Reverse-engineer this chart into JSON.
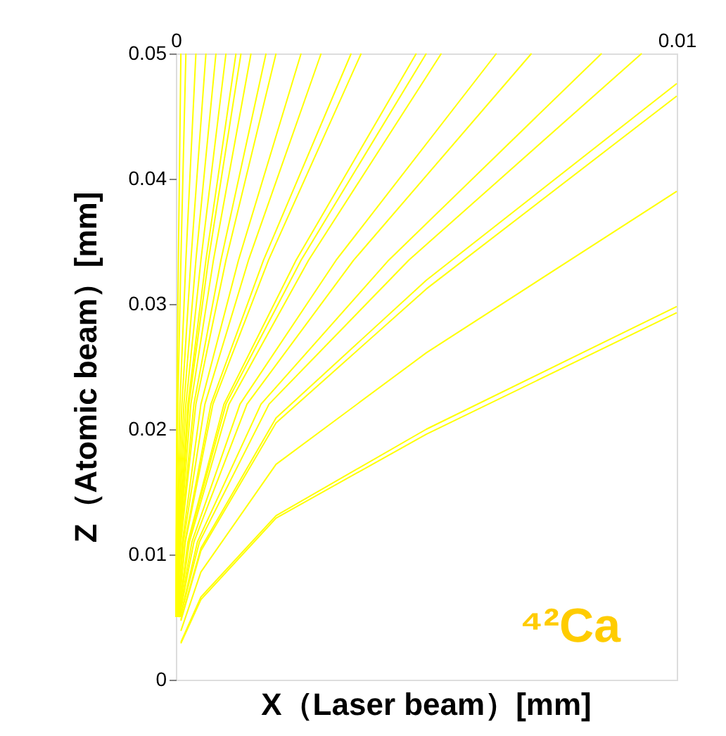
{
  "chart_data": {
    "type": "line",
    "xlabel": "X（Laser beam）[mm]",
    "ylabel": "Z（Atomic beam）[mm]",
    "xlim": [
      0,
      0.01
    ],
    "ylim": [
      0,
      0.05
    ],
    "xticks": [
      0,
      0.01
    ],
    "yticks": [
      0,
      0.01,
      0.02,
      0.03,
      0.04,
      0.05
    ],
    "grid": false,
    "legend": false,
    "marker": "none",
    "line_style": "solid",
    "annotations": [
      "⁴²Ca"
    ],
    "series": [
      {
        "color": "#ffff00",
        "x": [
          0.0001,
          0.0005,
          0.002,
          0.005,
          0.01
        ],
        "values": [
          0.0029,
          0.0064,
          0.0129,
          0.0196,
          0.0293
        ]
      },
      {
        "color": "#ffff00",
        "x": [
          0.0001,
          0.0005,
          0.002,
          0.005,
          0.01
        ],
        "values": [
          0.003,
          0.0066,
          0.0131,
          0.02,
          0.0298
        ]
      },
      {
        "color": "#ffff00",
        "x": [
          0.0001,
          0.0005,
          0.002,
          0.005,
          0.01
        ],
        "values": [
          0.0039,
          0.0086,
          0.0172,
          0.0261,
          0.039
        ]
      },
      {
        "color": "#ffff00",
        "x": [
          0.0001,
          0.0005,
          0.002,
          0.005,
          0.01
        ],
        "values": [
          0.0047,
          0.0103,
          0.0205,
          0.0312,
          0.0466
        ]
      },
      {
        "color": "#ffff00",
        "x": [
          0.0001,
          0.0005,
          0.002,
          0.005,
          0.01
        ],
        "values": [
          0.0048,
          0.0105,
          0.0209,
          0.0319,
          0.0476
        ]
      },
      {
        "color": "#ffff00",
        "x": [
          9e-05,
          0.00047,
          0.00186,
          0.00465,
          0.0093
        ],
        "values": [
          0.005,
          0.011,
          0.022,
          0.0335,
          0.05
        ]
      },
      {
        "color": "#ffff00",
        "x": [
          9e-05,
          0.00043,
          0.0017,
          0.00425,
          0.0085
        ],
        "values": [
          0.005,
          0.011,
          0.022,
          0.0335,
          0.05
        ]
      },
      {
        "color": "#ffff00",
        "x": [
          7e-05,
          0.00036,
          0.00142,
          0.00355,
          0.0071
        ],
        "values": [
          0.005,
          0.011,
          0.022,
          0.0335,
          0.05
        ]
      },
      {
        "color": "#ffff00",
        "x": [
          6e-05,
          0.00032,
          0.00128,
          0.0032,
          0.0064
        ],
        "values": [
          0.005,
          0.011,
          0.022,
          0.0335,
          0.05
        ]
      },
      {
        "color": "#ffff00",
        "x": [
          5e-05,
          0.00027,
          0.00106,
          0.00265,
          0.0053
        ],
        "values": [
          0.005,
          0.011,
          0.022,
          0.0335,
          0.05
        ]
      },
      {
        "color": "#ffff00",
        "x": [
          5e-05,
          0.00025,
          0.001,
          0.0025,
          0.005
        ],
        "values": [
          0.005,
          0.011,
          0.022,
          0.0335,
          0.05
        ]
      },
      {
        "color": "#ffff00",
        "x": [
          5e-05,
          0.00024,
          0.00096,
          0.0024,
          0.0048
        ],
        "values": [
          0.005,
          0.011,
          0.022,
          0.0335,
          0.05
        ]
      },
      {
        "color": "#ffff00",
        "x": [
          4e-05,
          0.00019,
          0.00074,
          0.00185,
          0.0037
        ],
        "values": [
          0.005,
          0.011,
          0.022,
          0.0335,
          0.05
        ]
      },
      {
        "color": "#ffff00",
        "x": [
          4e-05,
          0.00018,
          0.0007,
          0.00175,
          0.0035
        ],
        "values": [
          0.005,
          0.011,
          0.022,
          0.0335,
          0.05
        ]
      },
      {
        "color": "#ffff00",
        "x": [
          3e-05,
          0.00015,
          0.00058,
          0.00145,
          0.0029
        ],
        "values": [
          0.005,
          0.011,
          0.022,
          0.0335,
          0.05
        ]
      },
      {
        "color": "#ffff00",
        "x": [
          3e-05,
          0.00013,
          0.0005,
          0.00125,
          0.0025
        ],
        "values": [
          0.005,
          0.011,
          0.022,
          0.0335,
          0.05
        ]
      },
      {
        "color": "#ffff00",
        "x": [
          2e-05,
          0.0001,
          0.0004,
          0.001,
          0.002
        ],
        "values": [
          0.005,
          0.011,
          0.022,
          0.0335,
          0.05
        ]
      },
      {
        "color": "#ffff00",
        "x": [
          2e-05,
          9e-05,
          0.00036,
          0.0009,
          0.0018
        ],
        "values": [
          0.005,
          0.011,
          0.022,
          0.0335,
          0.05
        ]
      },
      {
        "color": "#ffff00",
        "x": [
          2e-05,
          8e-05,
          0.0003,
          0.00075,
          0.0015
        ],
        "values": [
          0.005,
          0.011,
          0.022,
          0.0335,
          0.05
        ]
      },
      {
        "color": "#ffff00",
        "x": [
          1.3e-05,
          7e-05,
          0.00026,
          0.00065,
          0.0013
        ],
        "values": [
          0.005,
          0.011,
          0.022,
          0.0335,
          0.05
        ]
      },
      {
        "color": "#ffff00",
        "x": [
          1.2e-05,
          6e-05,
          0.00024,
          0.0006,
          0.0012
        ],
        "values": [
          0.005,
          0.011,
          0.022,
          0.0335,
          0.05
        ]
      },
      {
        "color": "#ffff00",
        "x": [
          1e-05,
          5e-05,
          0.0002,
          0.0005,
          0.001
        ],
        "values": [
          0.005,
          0.011,
          0.022,
          0.0335,
          0.05
        ]
      },
      {
        "color": "#ffff00",
        "x": [
          8e-06,
          4e-05,
          0.00016,
          0.0004,
          0.0008
        ],
        "values": [
          0.005,
          0.011,
          0.022,
          0.0335,
          0.05
        ]
      },
      {
        "color": "#ffff00",
        "x": [
          6e-06,
          3e-05,
          0.00012,
          0.0003,
          0.0006
        ],
        "values": [
          0.005,
          0.011,
          0.022,
          0.0335,
          0.05
        ]
      },
      {
        "color": "#ffff00",
        "x": [
          4e-06,
          2e-05,
          8e-05,
          0.0002,
          0.0004
        ],
        "values": [
          0.005,
          0.011,
          0.022,
          0.0335,
          0.05
        ]
      },
      {
        "color": "#ffff00",
        "x": [
          2e-06,
          1e-05,
          4e-05,
          0.0001,
          0.0002
        ],
        "values": [
          0.005,
          0.011,
          0.022,
          0.0335,
          0.05
        ]
      },
      {
        "color": "#ffff00",
        "x": [
          1e-06,
          5e-06,
          2e-05,
          5e-05,
          0.0001
        ],
        "values": [
          0.005,
          0.011,
          0.022,
          0.0335,
          0.05
        ]
      }
    ]
  }
}
